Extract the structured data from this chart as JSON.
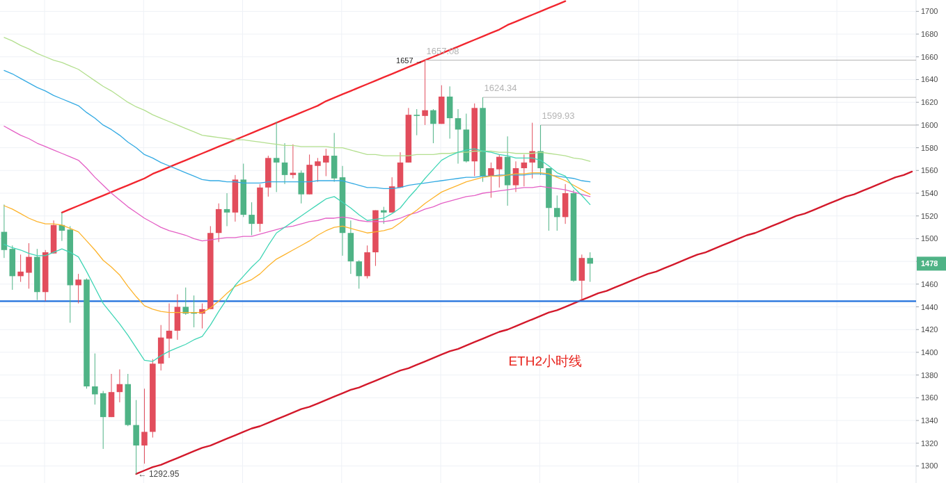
{
  "chart_data": {
    "type": "candlestick",
    "categories": [
      null,
      null,
      null,
      null,
      null,
      null,
      null,
      null,
      null,
      null,
      null,
      null,
      null,
      null,
      null,
      null,
      null,
      null,
      null,
      null,
      null,
      null,
      null,
      null,
      null,
      null,
      null,
      null,
      null,
      null,
      null,
      null,
      null,
      null,
      null,
      null,
      null,
      null,
      null,
      null,
      null,
      null,
      null,
      null,
      null,
      null,
      null,
      null,
      null,
      null,
      null,
      null,
      null,
      null,
      null,
      null,
      null,
      null,
      null,
      null,
      null,
      null,
      null,
      null,
      null,
      null,
      null,
      null,
      null,
      null,
      null,
      null,
      null,
      null,
      null,
      null,
      null,
      null,
      null,
      null,
      null,
      null,
      null,
      null,
      null,
      null,
      null,
      null,
      null,
      null,
      null,
      null,
      null,
      null,
      null,
      null,
      null,
      null,
      null,
      null,
      null,
      null,
      null,
      null,
      null,
      null,
      null,
      null,
      null,
      null,
      null
    ],
    "ohlc": [
      [
        1506,
        1530,
        1483,
        1490
      ],
      [
        1491,
        1494,
        1455,
        1467
      ],
      [
        1467,
        1486,
        1462,
        1471
      ],
      [
        1470,
        1496,
        1456,
        1484
      ],
      [
        1484,
        1491,
        1446,
        1453
      ],
      [
        1453,
        1490,
        1445,
        1488
      ],
      [
        1487,
        1516,
        1487,
        1512
      ],
      [
        1512,
        1523,
        1498,
        1507
      ],
      [
        1508,
        1511,
        1426,
        1459
      ],
      [
        1459,
        1469,
        1443,
        1464
      ],
      [
        1464,
        1465,
        1368,
        1370
      ],
      [
        1370,
        1399,
        1354,
        1363
      ],
      [
        1364,
        1366,
        1315,
        1343
      ],
      [
        1343,
        1381,
        1343,
        1365
      ],
      [
        1365,
        1385,
        1356,
        1372
      ],
      [
        1372,
        1381,
        1335,
        1336
      ],
      [
        1336,
        1358,
        1292.95,
        1318
      ],
      [
        1318,
        1368,
        1302,
        1330
      ],
      [
        1330,
        1394,
        1325,
        1390
      ],
      [
        1390,
        1424,
        1384,
        1413
      ],
      [
        1412,
        1443,
        1395,
        1419
      ],
      [
        1419,
        1451,
        1411,
        1440
      ],
      [
        1440,
        1457,
        1433,
        1434
      ],
      [
        1435,
        1450,
        1422,
        1434
      ],
      [
        1434,
        1443,
        1421,
        1438
      ],
      [
        1438,
        1511,
        1438,
        1505
      ],
      [
        1505,
        1531,
        1497,
        1526
      ],
      [
        1526,
        1540,
        1511,
        1523
      ],
      [
        1523,
        1556,
        1515,
        1552
      ],
      [
        1552,
        1566,
        1519,
        1521
      ],
      [
        1521,
        1532,
        1503,
        1513
      ],
      [
        1513,
        1548,
        1506,
        1545
      ],
      [
        1545,
        1573,
        1537,
        1571
      ],
      [
        1571,
        1603,
        1541,
        1567
      ],
      [
        1567,
        1584,
        1548,
        1556
      ],
      [
        1556,
        1583,
        1553,
        1558
      ],
      [
        1558,
        1560,
        1531,
        1539
      ],
      [
        1539,
        1574,
        1539,
        1565
      ],
      [
        1564,
        1571,
        1550,
        1568
      ],
      [
        1567,
        1579,
        1555,
        1573
      ],
      [
        1573,
        1593,
        1550,
        1553
      ],
      [
        1554,
        1564,
        1485,
        1505
      ],
      [
        1505,
        1516,
        1469,
        1480
      ],
      [
        1480,
        1481,
        1456,
        1467
      ],
      [
        1467,
        1494,
        1465,
        1488
      ],
      [
        1488,
        1525,
        1476,
        1525
      ],
      [
        1525,
        1528,
        1513,
        1523
      ],
      [
        1523,
        1554,
        1523,
        1546
      ],
      [
        1545,
        1576,
        1545,
        1567
      ],
      [
        1567,
        1615,
        1567,
        1609
      ],
      [
        1609,
        1614,
        1591,
        1608
      ],
      [
        1608,
        1657.08,
        1600,
        1613
      ],
      [
        1613,
        1614,
        1584,
        1601
      ],
      [
        1601,
        1635,
        1601,
        1625
      ],
      [
        1625,
        1634,
        1588,
        1606
      ],
      [
        1606,
        1614,
        1566,
        1596
      ],
      [
        1596,
        1610,
        1567,
        1568
      ],
      [
        1568,
        1619,
        1555,
        1615
      ],
      [
        1615,
        1624.34,
        1550,
        1555
      ],
      [
        1555,
        1567,
        1536,
        1562
      ],
      [
        1561,
        1574,
        1545,
        1572
      ],
      [
        1572,
        1590,
        1529,
        1547
      ],
      [
        1547,
        1568,
        1541,
        1562
      ],
      [
        1562,
        1574,
        1546,
        1567
      ],
      [
        1567,
        1602,
        1553,
        1577
      ],
      [
        1577,
        1599.93,
        1556,
        1562
      ],
      [
        1562,
        1562,
        1507,
        1527
      ],
      [
        1527,
        1538,
        1507,
        1519
      ],
      [
        1519,
        1548,
        1513,
        1540
      ],
      [
        1540,
        1543,
        1462,
        1463
      ],
      [
        1463,
        1486,
        1446,
        1483
      ],
      [
        1483,
        1488,
        1462,
        1478
      ],
      null,
      null,
      null,
      null,
      null,
      null,
      null,
      null,
      null,
      null,
      null,
      null,
      null,
      null,
      null,
      null,
      null,
      null,
      null,
      null,
      null,
      null,
      null,
      null,
      null,
      null,
      null,
      null,
      null,
      null,
      null,
      null,
      null,
      null,
      null,
      null,
      null,
      null,
      null
    ],
    "colors": [
      "#4fb386",
      "#4fb386",
      "#e24d5c",
      "#e24d5c",
      "#4fb386",
      "#e24d5c",
      "#e24d5c",
      "#4fb386",
      "#4fb386",
      "#e24d5c",
      "#4fb386",
      "#4fb386",
      "#4fb386",
      "#e24d5c",
      "#e24d5c",
      "#4fb386",
      "#4fb386",
      "#e24d5c",
      "#e24d5c",
      "#e24d5c",
      "#e24d5c",
      "#e24d5c",
      "#4fb386",
      "#4fb386",
      "#e24d5c",
      "#e24d5c",
      "#e24d5c",
      "#4fb386",
      "#e24d5c",
      "#4fb386",
      "#4fb386",
      "#e24d5c",
      "#e24d5c",
      "#4fb386",
      "#4fb386",
      "#e24d5c",
      "#4fb386",
      "#e24d5c",
      "#e24d5c",
      "#e24d5c",
      "#4fb386",
      "#4fb386",
      "#4fb386",
      "#4fb386",
      "#e24d5c",
      "#e24d5c",
      "#4fb386",
      "#e24d5c",
      "#e24d5c",
      "#e24d5c",
      "#4fb386",
      "#e24d5c",
      "#4fb386",
      "#e24d5c",
      "#4fb386",
      "#4fb386",
      "#4fb386",
      "#e24d5c",
      "#4fb386",
      "#e24d5c",
      "#e24d5c",
      "#4fb386",
      "#e24d5c",
      "#e24d5c",
      "#e24d5c",
      "#4fb386",
      "#4fb386",
      "#4fb386",
      "#e24d5c",
      "#4fb386",
      "#e24d5c",
      "#4fb386",
      null,
      null,
      null,
      null,
      null,
      null,
      null,
      null,
      null,
      null,
      null,
      null,
      null,
      null,
      null,
      null,
      null,
      null,
      null,
      null,
      null,
      null,
      null,
      null,
      null,
      null,
      null,
      null,
      null,
      null,
      null,
      null,
      null,
      null,
      null,
      null,
      null,
      null,
      null
    ],
    "series": [
      {
        "type": "line",
        "color": "#b3df8e",
        "values": [
          1677,
          1674,
          1670,
          1667,
          1663,
          1660,
          1657,
          1655,
          1652,
          1649,
          1644,
          1639,
          1634,
          1630,
          1625,
          1620,
          1616,
          1613,
          1609,
          1606,
          1603,
          1600,
          1597,
          1594,
          1591,
          1590,
          1589,
          1588,
          1587,
          1587,
          1586,
          1585,
          1584,
          1583,
          1582,
          1582,
          1581,
          1581,
          1581,
          1581,
          1580,
          1580,
          1578,
          1576,
          1574,
          1574,
          1573,
          1573,
          1573,
          1573,
          1574,
          1574,
          1574,
          1575,
          1575,
          1576,
          1576,
          1577,
          1577,
          1577,
          1576,
          1576,
          1575,
          1575,
          1575,
          1576,
          1575,
          1574,
          1573,
          1571,
          1570,
          1568,
          null,
          null,
          null,
          null,
          null,
          null,
          null,
          null,
          null,
          null,
          null,
          null,
          null,
          null,
          null,
          null,
          null,
          null,
          null,
          null,
          null,
          null,
          null,
          null,
          null,
          null,
          null,
          null,
          null,
          null,
          null,
          null,
          null,
          null,
          null,
          null,
          null,
          null,
          null
        ]
      },
      {
        "type": "line",
        "color": "#33aae3",
        "values": [
          1648,
          1645,
          1641,
          1637,
          1633,
          1630,
          1626,
          1623,
          1620,
          1617,
          1611,
          1606,
          1600,
          1596,
          1591,
          1585,
          1580,
          1574,
          1571,
          1567,
          1564,
          1561,
          1558,
          1555,
          1552,
          1551,
          1551,
          1550,
          1550,
          1549,
          1549,
          1549,
          1550,
          1550,
          1550,
          1550,
          1550,
          1550,
          1551,
          1551,
          1551,
          1551,
          1549,
          1547,
          1545,
          1545,
          1544,
          1544,
          1545,
          1547,
          1548,
          1549,
          1550,
          1551,
          1552,
          1553,
          1554,
          1554,
          1555,
          1555,
          1556,
          1556,
          1556,
          1556,
          1557,
          1557,
          1556,
          1555,
          1554,
          1553,
          1551,
          1550,
          null,
          null,
          null,
          null,
          null,
          null,
          null,
          null,
          null,
          null,
          null,
          null,
          null,
          null,
          null,
          null,
          null,
          null,
          null,
          null,
          null,
          null,
          null,
          null,
          null,
          null,
          null,
          null,
          null,
          null,
          null,
          null,
          null,
          null,
          null,
          null,
          null,
          null,
          null
        ]
      },
      {
        "type": "line",
        "color": "#e45fc5",
        "values": [
          1599,
          1595,
          1591,
          1588,
          1584,
          1581,
          1578,
          1575,
          1572,
          1569,
          1562,
          1554,
          1547,
          1540,
          1534,
          1528,
          1523,
          1518,
          1514,
          1510,
          1507,
          1505,
          1503,
          1500,
          1498,
          1499,
          1500,
          1501,
          1501,
          1502,
          1502,
          1504,
          1506,
          1508,
          1510,
          1511,
          1513,
          1515,
          1516,
          1518,
          1518,
          1519,
          1518,
          1516,
          1515,
          1515,
          1515,
          1516,
          1518,
          1521,
          1523,
          1526,
          1528,
          1531,
          1533,
          1535,
          1537,
          1538,
          1540,
          1541,
          1542,
          1543,
          1544,
          1545,
          1545,
          1546,
          1545,
          1544,
          1543,
          1541,
          1539,
          1537,
          null,
          null,
          null,
          null,
          null,
          null,
          null,
          null,
          null,
          null,
          null,
          null,
          null,
          null,
          null,
          null,
          null,
          null,
          null,
          null,
          null,
          null,
          null,
          null,
          null,
          null,
          null,
          null,
          null,
          null,
          null,
          null,
          null,
          null,
          null,
          null,
          null,
          null,
          null
        ]
      },
      {
        "type": "line",
        "color": "#fdb32b",
        "values": [
          1529,
          1526,
          1522,
          1518,
          1515,
          1513,
          1513,
          1512,
          1509,
          1506,
          1498,
          1490,
          1481,
          1475,
          1468,
          1458,
          1449,
          1441,
          1438,
          1436,
          1435,
          1435,
          1435,
          1435,
          1435,
          1439,
          1445,
          1452,
          1458,
          1461,
          1464,
          1469,
          1476,
          1482,
          1486,
          1490,
          1494,
          1498,
          1503,
          1507,
          1510,
          1511,
          1509,
          1507,
          1505,
          1506,
          1507,
          1509,
          1514,
          1520,
          1525,
          1531,
          1536,
          1541,
          1544,
          1547,
          1550,
          1552,
          1554,
          1555,
          1555,
          1556,
          1557,
          1557,
          1558,
          1558,
          1557,
          1554,
          1551,
          1547,
          1543,
          1539,
          null,
          null,
          null,
          null,
          null,
          null,
          null,
          null,
          null,
          null,
          null,
          null,
          null,
          null,
          null,
          null,
          null,
          null,
          null,
          null,
          null,
          null,
          null,
          null,
          null,
          null,
          null,
          null,
          null,
          null,
          null,
          null,
          null,
          null,
          null,
          null,
          null,
          null,
          null
        ]
      },
      {
        "type": "line",
        "color": "#3fd5b5",
        "values": [
          1495,
          1492,
          1490,
          1487,
          1485,
          1485,
          1488,
          1491,
          1488,
          1484,
          1471,
          1457,
          1443,
          1434,
          1425,
          1415,
          1404,
          1393,
          1392,
          1397,
          1401,
          1404,
          1407,
          1411,
          1414,
          1424,
          1436,
          1447,
          1459,
          1467,
          1475,
          1482,
          1494,
          1505,
          1510,
          1515,
          1520,
          1525,
          1530,
          1535,
          1537,
          1532,
          1527,
          1521,
          1516,
          1517,
          1518,
          1522,
          1527,
          1536,
          1544,
          1553,
          1561,
          1569,
          1573,
          1576,
          1578,
          1579,
          1577,
          1576,
          1574,
          1573,
          1571,
          1571,
          1571,
          1569,
          1564,
          1558,
          1555,
          1545,
          1538,
          1530,
          null,
          null,
          null,
          null,
          null,
          null,
          null,
          null,
          null,
          null,
          null,
          null,
          null,
          null,
          null,
          null,
          null,
          null,
          null,
          null,
          null,
          null,
          null,
          null,
          null,
          null,
          null,
          null,
          null,
          null,
          null,
          null,
          null,
          null,
          null,
          null,
          null,
          null,
          null
        ]
      },
      {
        "type": "line",
        "color": "#f2262f",
        "values": [
          null,
          null,
          null,
          null,
          null,
          null,
          null,
          1523,
          1526,
          1529,
          1532,
          1535,
          1538,
          1541,
          1544,
          1547,
          1550,
          1553,
          1557,
          1560,
          1563,
          1566,
          1569,
          1572,
          1575,
          1578,
          1581,
          1584,
          1587,
          1590,
          1593,
          1596,
          1599,
          1602,
          1605,
          1608,
          1611,
          1614,
          1617,
          1621,
          1624,
          1627,
          1630,
          1633,
          1636,
          1639,
          1642,
          1645,
          1648,
          1651,
          1654,
          1657,
          1660,
          1663,
          1666,
          1669,
          1672,
          1675,
          1678,
          1681,
          1684,
          1688,
          1691,
          1694,
          1697,
          1700,
          1703,
          1706,
          1709,
          null,
          null,
          null,
          null,
          null,
          null,
          null,
          null,
          null,
          null,
          null,
          null,
          null,
          null,
          null,
          null,
          null,
          null,
          null,
          null,
          null,
          null,
          null,
          null,
          null,
          null,
          null,
          null,
          null,
          null,
          null,
          null,
          null,
          null,
          null,
          null,
          null,
          null,
          null,
          null,
          null,
          null
        ]
      },
      {
        "type": "line",
        "color": "#d3192b",
        "values": [
          null,
          null,
          null,
          null,
          null,
          null,
          null,
          null,
          null,
          null,
          null,
          null,
          null,
          null,
          null,
          null,
          1293,
          1296,
          1299,
          1301,
          1304,
          1307,
          1310,
          1313,
          1316,
          1318,
          1321,
          1324,
          1327,
          1330,
          1333,
          1335,
          1338,
          1341,
          1344,
          1347,
          1350,
          1352,
          1355,
          1358,
          1361,
          1364,
          1367,
          1369,
          1372,
          1375,
          1378,
          1381,
          1384,
          1386,
          1389,
          1392,
          1395,
          1398,
          1401,
          1403,
          1406,
          1409,
          1412,
          1415,
          1418,
          1420,
          1423,
          1426,
          1429,
          1432,
          1435,
          1437,
          1440,
          1443,
          1446,
          1449,
          1452,
          1454,
          1457,
          1460,
          1463,
          1466,
          1469,
          1471,
          1474,
          1477,
          1480,
          1483,
          1486,
          1488,
          1491,
          1494,
          1497,
          1500,
          1503,
          1505,
          1508,
          1511,
          1514,
          1517,
          1520,
          1522,
          1525,
          1528,
          1531,
          1534,
          1537,
          1539,
          1542,
          1545,
          1548,
          1551,
          1554,
          1556,
          1559
        ]
      }
    ],
    "ylim": [
      1285,
      1710
    ],
    "yticks": [
      1300,
      1320,
      1340,
      1360,
      1380,
      1400,
      1420,
      1440,
      1460,
      {
        "value": 1480,
        "label": null
      },
      1500,
      1520,
      1540,
      1560,
      1580,
      1600,
      1620,
      1640,
      1660,
      1680,
      1700
    ],
    "tick_labels": "y",
    "grid": true,
    "ref_lines": [
      {
        "axis": "y",
        "value": 1445,
        "color": "#1f6fdc"
      },
      {
        "axis": "y",
        "value": 1657.08,
        "label": "1657.08",
        "color": "#b4b4b4"
      },
      {
        "axis": "y",
        "value": 1624.34,
        "label": "1624.34",
        "color": "#b4b4b4"
      },
      {
        "axis": "y",
        "value": 1599.93,
        "label": "1599.93",
        "color": "#b4b4b4"
      }
    ],
    "annotations": [
      "1657 →",
      "← 1292.95",
      "1478",
      "ETH2小时线"
    ]
  }
}
